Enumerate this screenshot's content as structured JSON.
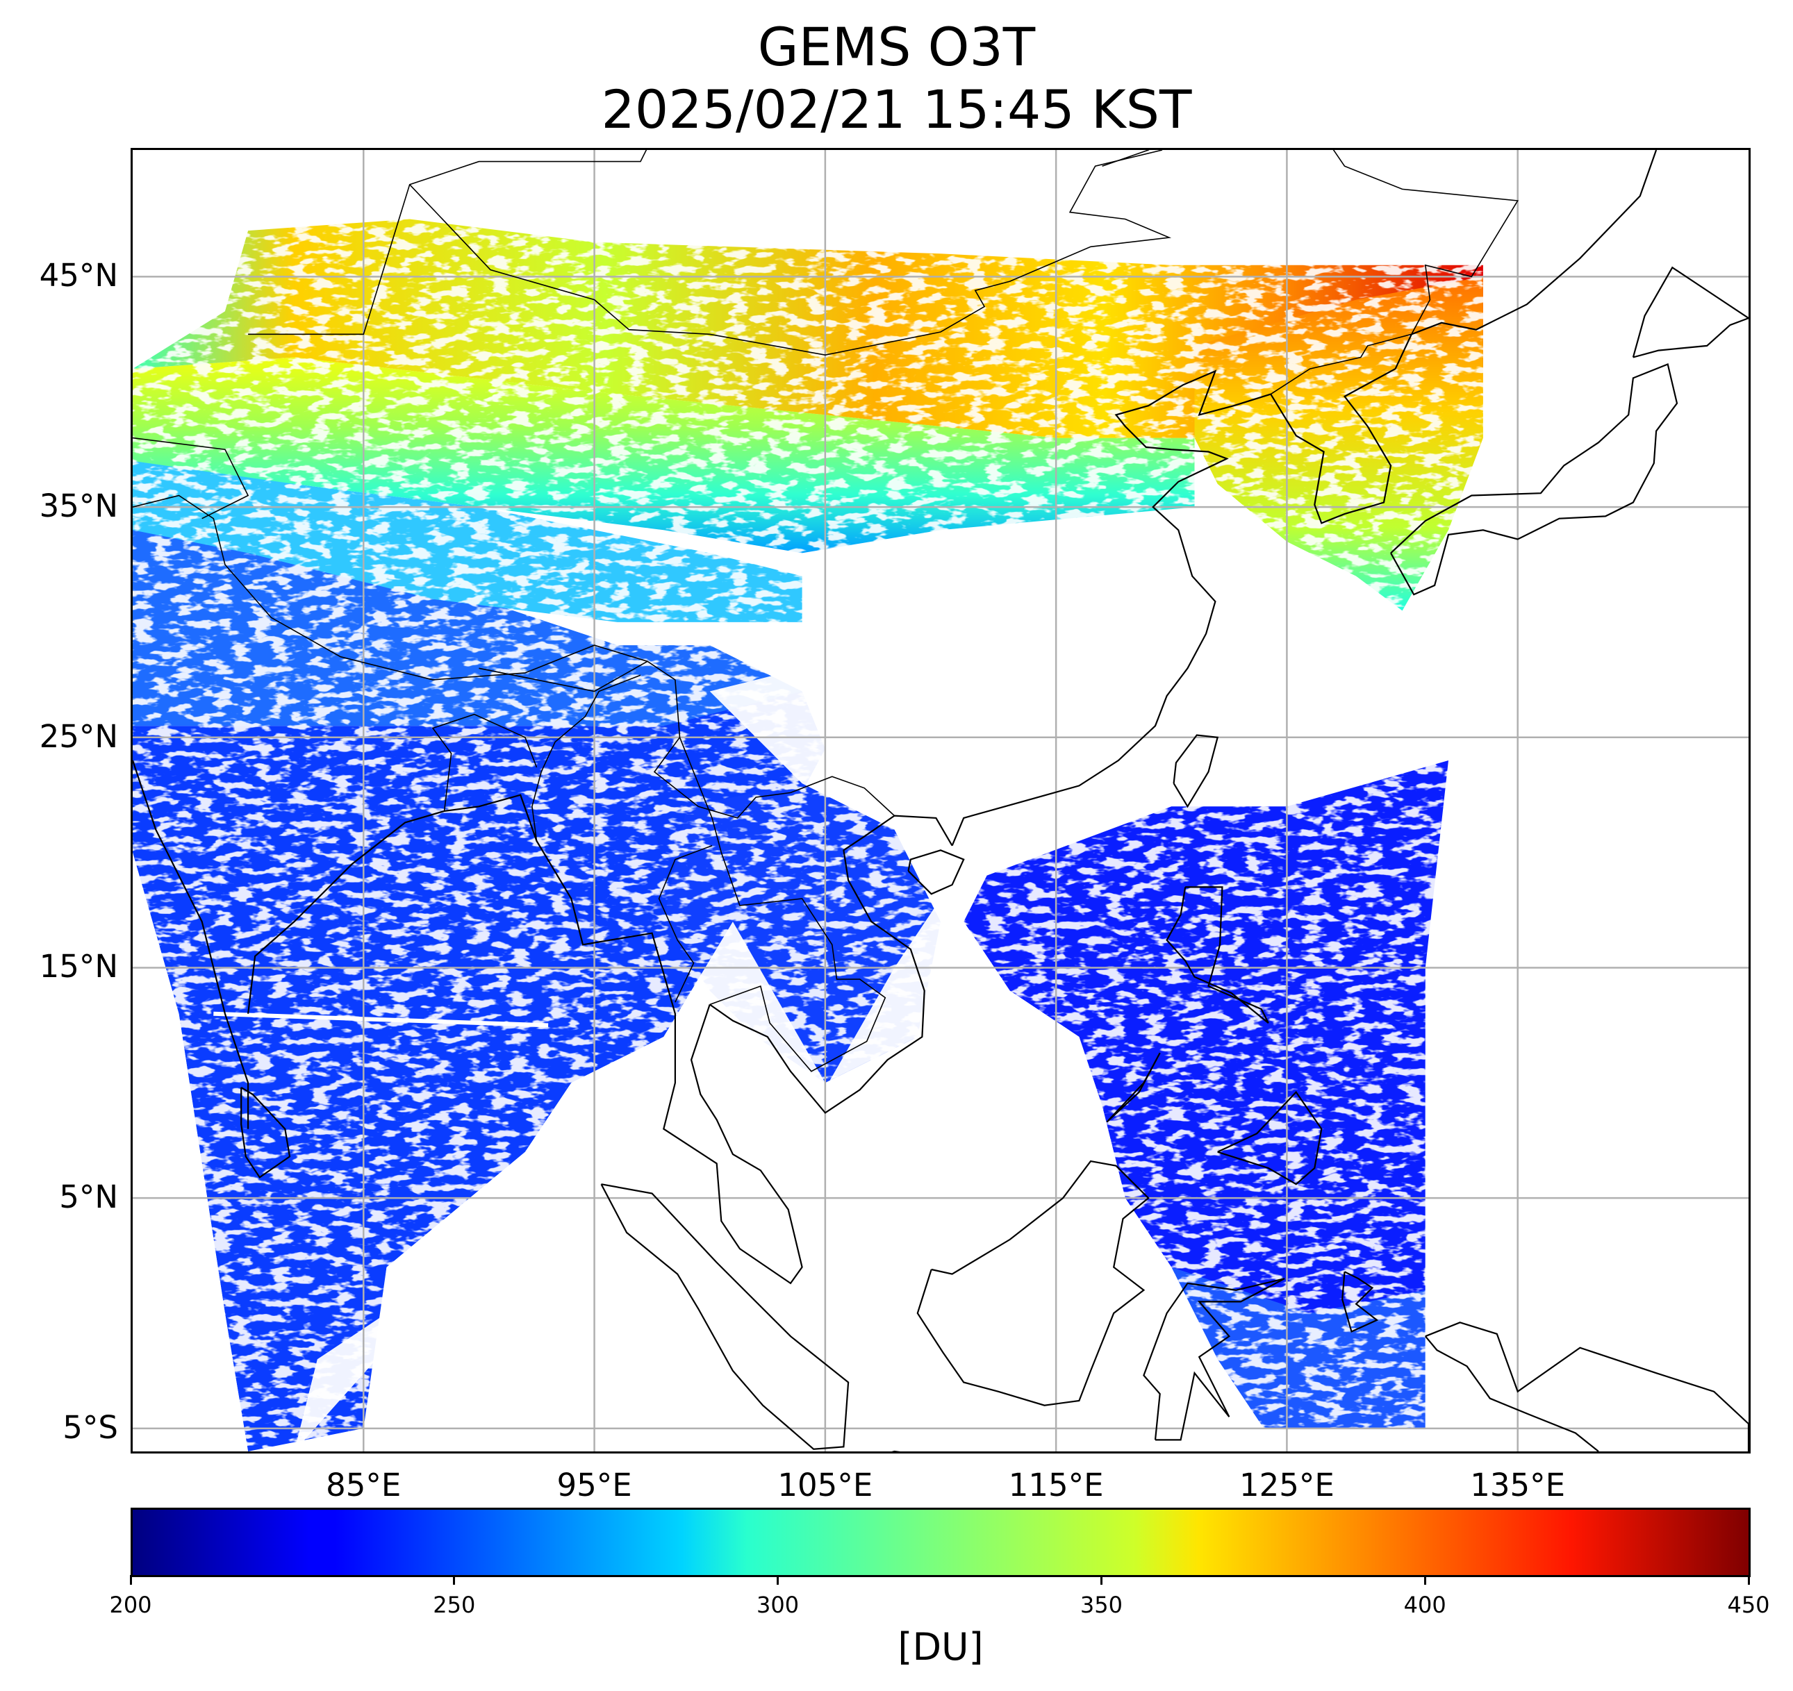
{
  "title": {
    "line1": "GEMS O3T",
    "line2": "2025/02/21 15:45 KST"
  },
  "map": {
    "lon_range": [
      75,
      145
    ],
    "lat_range": [
      -6,
      50.5
    ],
    "lat_ticks": [
      {
        "value": 45,
        "label": "45°N"
      },
      {
        "value": 35,
        "label": "35°N"
      },
      {
        "value": 25,
        "label": "25°N"
      },
      {
        "value": 15,
        "label": "15°N"
      },
      {
        "value": 5,
        "label": "5°N"
      },
      {
        "value": -5,
        "label": "5°S"
      }
    ],
    "lon_ticks": [
      {
        "value": 85,
        "label": "85°E"
      },
      {
        "value": 95,
        "label": "95°E"
      },
      {
        "value": 105,
        "label": "105°E"
      },
      {
        "value": 115,
        "label": "115°E"
      },
      {
        "value": 125,
        "label": "125°E"
      },
      {
        "value": 135,
        "label": "135°E"
      }
    ],
    "grid": true,
    "grid_color": "#b0b0b0",
    "coastline_color": "#000000",
    "no_data_color": "#ffffff"
  },
  "colorbar": {
    "label": "[DU]",
    "range": [
      200,
      450
    ],
    "colormap": "jet",
    "ticks": [
      {
        "value": 200,
        "label": "200"
      },
      {
        "value": 250,
        "label": "250"
      },
      {
        "value": 300,
        "label": "300"
      },
      {
        "value": 350,
        "label": "350"
      },
      {
        "value": 400,
        "label": "400"
      },
      {
        "value": 450,
        "label": "450"
      }
    ]
  }
}
